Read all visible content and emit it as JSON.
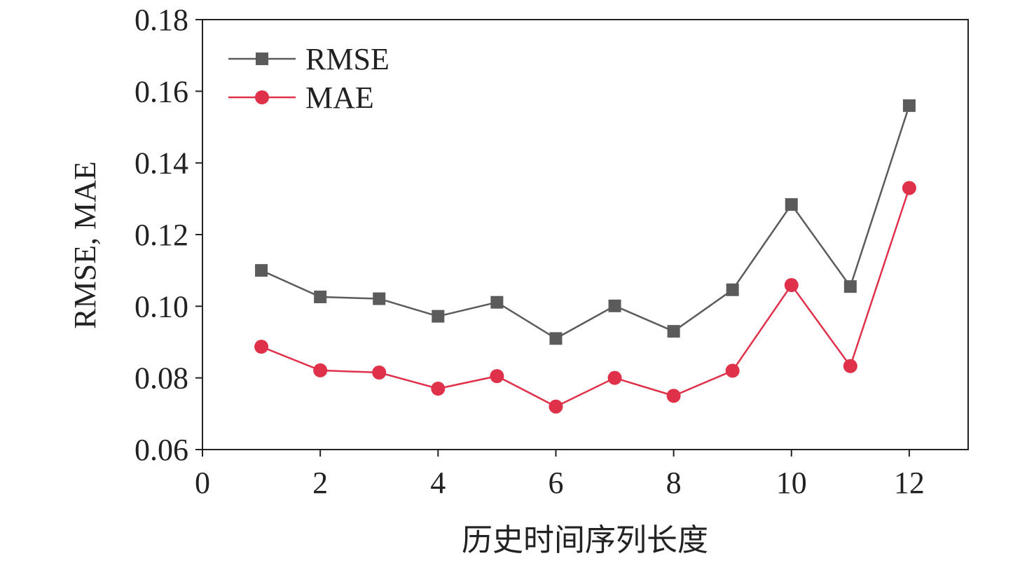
{
  "chart_data": {
    "type": "line",
    "title": "",
    "xlabel": "历史时间序列长度",
    "ylabel": "RMSE, MAE",
    "xlim": [
      0,
      13
    ],
    "ylim": [
      0.06,
      0.18
    ],
    "x_ticks": [
      0,
      2,
      4,
      6,
      8,
      10,
      12
    ],
    "x_tick_labels": [
      "0",
      "2",
      "4",
      "6",
      "8",
      "10",
      "12"
    ],
    "y_ticks": [
      0.06,
      0.08,
      0.1,
      0.12,
      0.14,
      0.16,
      0.18
    ],
    "y_tick_labels": [
      "0.06",
      "0.08",
      "0.10",
      "0.12",
      "0.14",
      "0.16",
      "0.18"
    ],
    "grid": false,
    "legend_position": "top-left",
    "x": [
      1,
      2,
      3,
      4,
      5,
      6,
      7,
      8,
      9,
      10,
      11,
      12
    ],
    "series": [
      {
        "name": "RMSE",
        "marker": "square",
        "color": "#5b5b5b",
        "values": [
          0.11,
          0.1026,
          0.1021,
          0.0972,
          0.1011,
          0.091,
          0.1001,
          0.093,
          0.1046,
          0.1284,
          0.1055,
          0.156
        ]
      },
      {
        "name": "MAE",
        "marker": "circle",
        "color": "#e0314b",
        "values": [
          0.0887,
          0.0821,
          0.0815,
          0.077,
          0.0805,
          0.072,
          0.08,
          0.075,
          0.082,
          0.1059,
          0.0833,
          0.133
        ]
      }
    ]
  }
}
